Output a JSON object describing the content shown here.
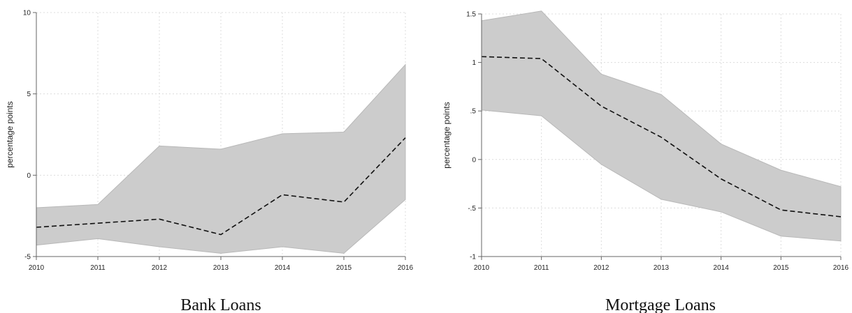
{
  "chart_data": [
    {
      "type": "area",
      "caption": "Bank Loans",
      "ylabel": "percentage points",
      "xlabel": "",
      "x": [
        2010,
        2011,
        2012,
        2013,
        2014,
        2015,
        2016
      ],
      "xticks": [
        "2010",
        "2011",
        "2012",
        "2013",
        "2014",
        "2015",
        "2016"
      ],
      "ylim": [
        -5,
        10
      ],
      "yticks": [
        -5,
        0,
        5,
        10
      ],
      "ytick_labels": [
        "-5",
        "0",
        "5",
        "10"
      ],
      "grid": true,
      "series": [
        {
          "style": "dashed",
          "color": "#111111",
          "values": [
            -3.2,
            -2.95,
            -2.7,
            -3.65,
            -1.2,
            -1.65,
            2.3
          ]
        }
      ],
      "band": {
        "color": "#cccccc",
        "upper": [
          -2.0,
          -1.8,
          1.8,
          1.6,
          2.55,
          2.65,
          6.8
        ],
        "lower": [
          -4.3,
          -3.9,
          -4.4,
          -4.8,
          -4.4,
          -4.8,
          -1.5
        ]
      }
    },
    {
      "type": "area",
      "caption": "Mortgage Loans",
      "ylabel": "percentage points",
      "xlabel": "",
      "x": [
        2010,
        2011,
        2012,
        2013,
        2014,
        2015,
        2016
      ],
      "xticks": [
        "2010",
        "2011",
        "2012",
        "2013",
        "2014",
        "2015",
        "2016"
      ],
      "ylim": [
        -1,
        1.5
      ],
      "yticks": [
        -1,
        -0.5,
        0,
        0.5,
        1,
        1.5
      ],
      "ytick_labels": [
        "-1",
        "-.5",
        "0",
        ".5",
        "1",
        "1.5"
      ],
      "grid": true,
      "series": [
        {
          "style": "dashed",
          "color": "#111111",
          "values": [
            1.06,
            1.04,
            0.55,
            0.23,
            -0.2,
            -0.52,
            -0.59
          ]
        }
      ],
      "band": {
        "color": "#cccccc",
        "upper": [
          1.43,
          1.53,
          0.88,
          0.67,
          0.16,
          -0.11,
          -0.28
        ],
        "lower": [
          0.51,
          0.45,
          -0.05,
          -0.41,
          -0.54,
          -0.79,
          -0.84
        ]
      }
    }
  ]
}
